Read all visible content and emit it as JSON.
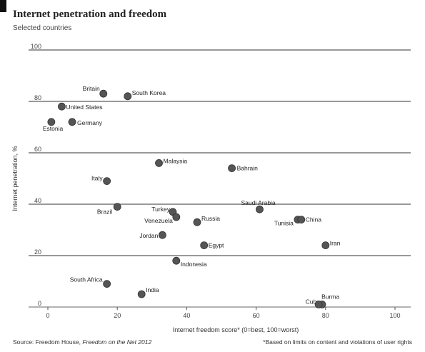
{
  "header": {
    "title": "Internet penetration and freedom",
    "subtitle": "Selected countries"
  },
  "footer": {
    "source_prefix": "Source: Freedom House,",
    "source_publication": "Freedom on the Net 2012",
    "footnote": "*Based on limits on content and violations of user rights"
  },
  "colors": {
    "gridline": "#999999",
    "point": "#555555",
    "text": "#222222"
  },
  "chart_data": {
    "type": "scatter",
    "title": "Internet penetration and freedom",
    "subtitle": "Selected countries",
    "xlabel": "Internet freedom score* (0=best, 100=worst)",
    "ylabel": "Internet penetration, %",
    "xlim": [
      0,
      100
    ],
    "ylim": [
      0,
      100
    ],
    "xticks": [
      0,
      20,
      40,
      60,
      80,
      100
    ],
    "yticks": [
      0,
      20,
      40,
      60,
      80,
      100
    ],
    "grid": "horizontal",
    "points": [
      {
        "label": "Britain",
        "x": 16,
        "y": 83
      },
      {
        "label": "South Korea",
        "x": 23,
        "y": 82
      },
      {
        "label": "United States",
        "x": 4,
        "y": 78
      },
      {
        "label": "Estonia",
        "x": 1,
        "y": 72
      },
      {
        "label": "Germany",
        "x": 7,
        "y": 72
      },
      {
        "label": "Malaysia",
        "x": 32,
        "y": 56
      },
      {
        "label": "Bahrain",
        "x": 53,
        "y": 54
      },
      {
        "label": "Italy",
        "x": 17,
        "y": 49
      },
      {
        "label": "Brazil",
        "x": 20,
        "y": 39
      },
      {
        "label": "Turkey",
        "x": 36,
        "y": 37
      },
      {
        "label": "Venezuela",
        "x": 37,
        "y": 35
      },
      {
        "label": "Russia",
        "x": 43,
        "y": 33
      },
      {
        "label": "Saudi Arabia",
        "x": 61,
        "y": 38
      },
      {
        "label": "Tunisia",
        "x": 72,
        "y": 34
      },
      {
        "label": "China",
        "x": 73,
        "y": 34
      },
      {
        "label": "Jordan",
        "x": 33,
        "y": 28
      },
      {
        "label": "Egypt",
        "x": 45,
        "y": 24
      },
      {
        "label": "Iran",
        "x": 80,
        "y": 24
      },
      {
        "label": "Indonesia",
        "x": 37,
        "y": 18
      },
      {
        "label": "South Africa",
        "x": 17,
        "y": 9
      },
      {
        "label": "India",
        "x": 27,
        "y": 5
      },
      {
        "label": "Cuba",
        "x": 79,
        "y": 1
      },
      {
        "label": "Burma",
        "x": 78,
        "y": 1
      }
    ]
  }
}
